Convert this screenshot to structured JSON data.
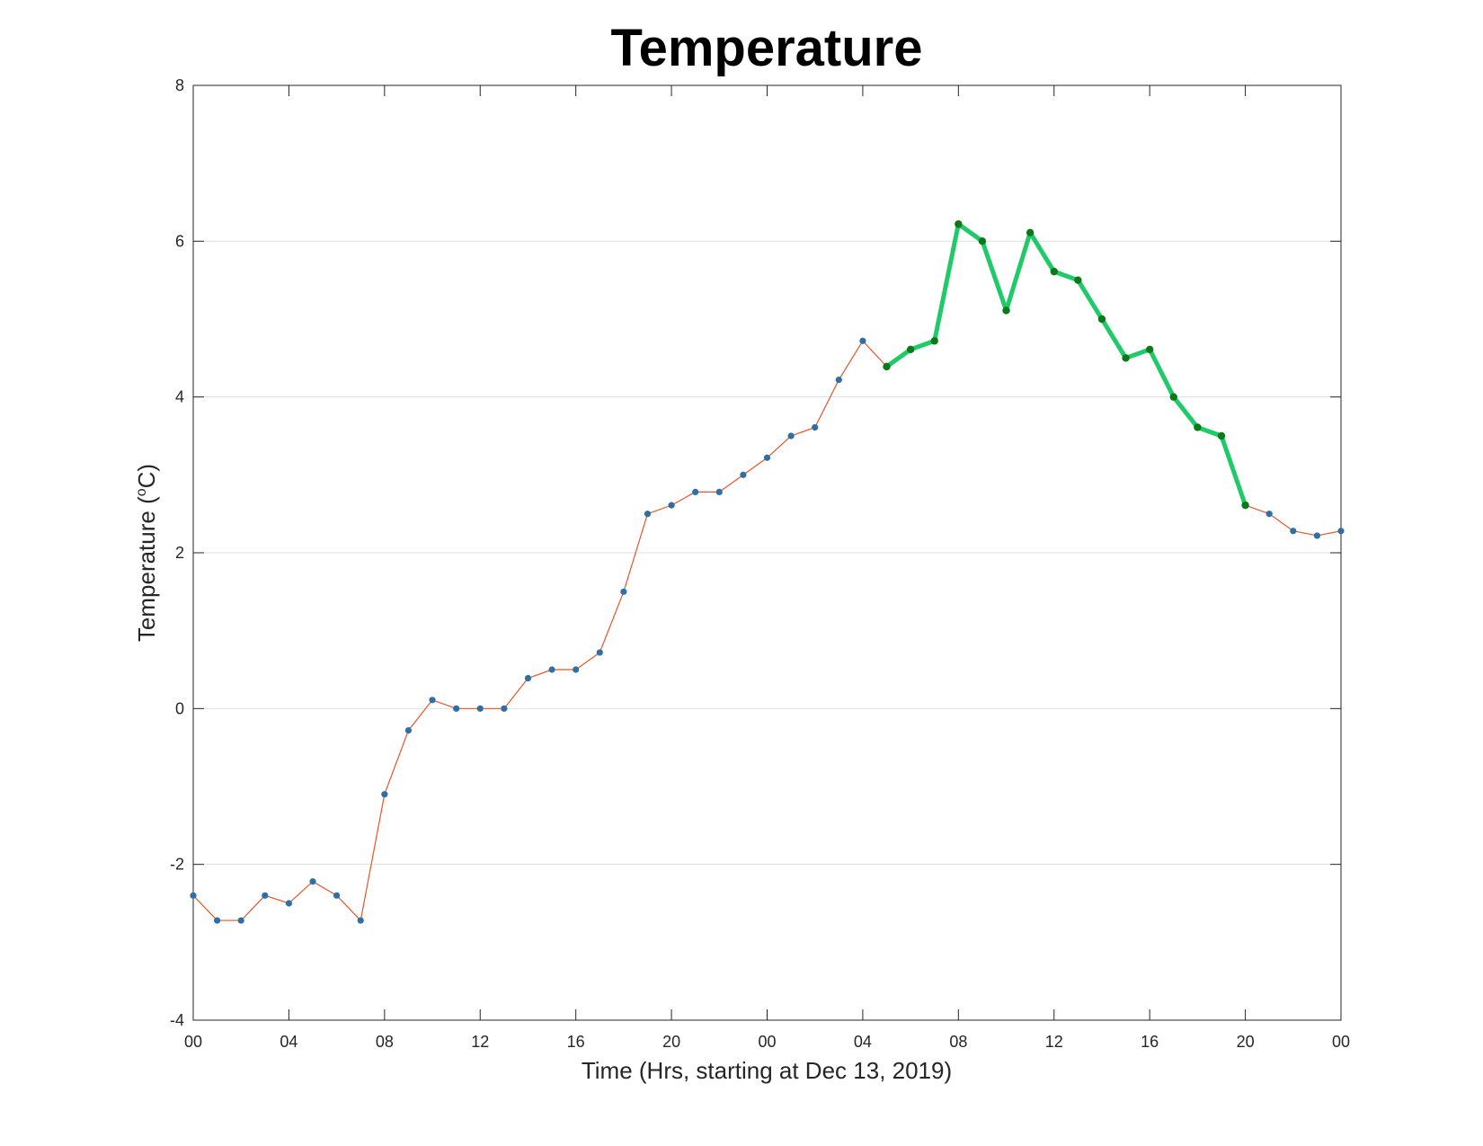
{
  "chart_data": {
    "type": "line",
    "title": "Temperature",
    "xlabel": "Time (Hrs, starting at Dec 13, 2019)",
    "ylabel_main": "Temperature (",
    "ylabel_degree": "o",
    "ylabel_unit": "C)",
    "ylim": [
      -4,
      8
    ],
    "y_ticks": [
      "-4",
      "-2",
      "0",
      "2",
      "4",
      "6",
      "8"
    ],
    "y_tick_values": [
      -4,
      -2,
      0,
      2,
      4,
      6,
      8
    ],
    "x_range_hours": [
      0,
      48
    ],
    "x_ticks": [
      "00",
      "04",
      "08",
      "12",
      "16",
      "20",
      "00",
      "04",
      "08",
      "12",
      "16",
      "20",
      "00"
    ],
    "x_tick_hours": [
      0,
      4,
      8,
      12,
      16,
      20,
      24,
      28,
      32,
      36,
      40,
      44,
      48
    ],
    "grid": "horizontal",
    "colors": {
      "full_line": "#e8552a",
      "full_markers": "#2f6fa8",
      "highlight_line": "#1ecb68",
      "highlight_markers": "#0a7a18",
      "grid": "#e0e0e0",
      "axes": "#262626"
    },
    "series": [
      {
        "style": "thin-line-blue-markers",
        "x": [
          0,
          1,
          2,
          3,
          4,
          5,
          6,
          7,
          8,
          9,
          10,
          11,
          12,
          13,
          14,
          15,
          16,
          17,
          18,
          19,
          20,
          21,
          22,
          23,
          24,
          25,
          26,
          27,
          28,
          29,
          30,
          31,
          32,
          33,
          34,
          35,
          36,
          37,
          38,
          39,
          40,
          41,
          42,
          43,
          44,
          45,
          46,
          47,
          48
        ],
        "y": [
          -2.4,
          -2.72,
          -2.72,
          -2.4,
          -2.5,
          -2.22,
          -2.4,
          -2.72,
          -1.1,
          -0.28,
          0.11,
          0.0,
          0.0,
          0.0,
          0.39,
          0.5,
          0.5,
          0.72,
          1.5,
          2.5,
          2.61,
          2.78,
          2.78,
          3.0,
          3.22,
          3.5,
          3.61,
          4.22,
          4.72,
          4.39,
          4.61,
          4.72,
          6.22,
          6.0,
          5.11,
          6.11,
          5.61,
          5.5,
          5.0,
          4.5,
          4.61,
          4.0,
          3.61,
          3.5,
          2.61,
          2.5,
          2.28,
          2.22,
          2.28
        ]
      },
      {
        "style": "thick-green-highlight",
        "x": [
          29,
          30,
          31,
          32,
          33,
          34,
          35,
          36,
          37,
          38,
          39,
          40,
          41,
          42,
          43,
          44
        ],
        "y": [
          4.39,
          4.61,
          4.72,
          6.22,
          6.0,
          5.11,
          6.11,
          5.61,
          5.5,
          5.0,
          4.5,
          4.61,
          4.0,
          3.61,
          3.5,
          2.61
        ]
      }
    ]
  }
}
